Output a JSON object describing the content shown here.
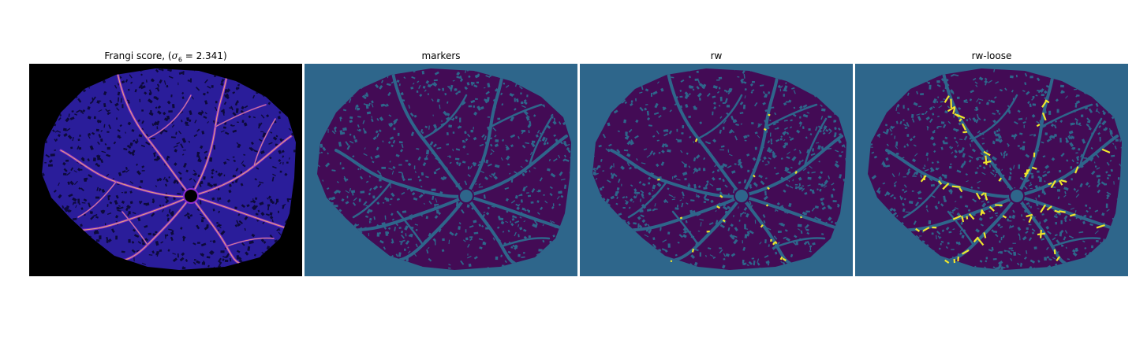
{
  "panels": [
    {
      "id": "frangi",
      "title_prefix": "Frangi score, (",
      "title_symbol": "σ",
      "title_subscript": "6",
      "title_suffix": " = 2.341)",
      "colormap": "magma",
      "colors": {
        "background": "#000000",
        "tissue": "#2a1d9a",
        "speckle": "#0d0a3a",
        "vessel_low": "#8a2bd0",
        "vessel_high": "#f6b36c"
      }
    },
    {
      "id": "markers",
      "title": "markers",
      "colormap": "viridis",
      "colors": {
        "background": "#2e668b",
        "tissue": "#430b55",
        "speckle": "#2e668b",
        "vessel": "#2e668b"
      }
    },
    {
      "id": "rw",
      "title": "rw",
      "colormap": "viridis",
      "colors": {
        "background": "#2e668b",
        "tissue": "#430b55",
        "speckle": "#2e668b",
        "vessel": "#2e668b",
        "highlight": "#f0e62c"
      }
    },
    {
      "id": "rw-loose",
      "title": "rw-loose",
      "colormap": "viridis",
      "colors": {
        "background": "#2e668b",
        "tissue": "#430b55",
        "speckle": "#2e668b",
        "vessel": "#2e668b",
        "highlight": "#f0e62c"
      }
    }
  ]
}
